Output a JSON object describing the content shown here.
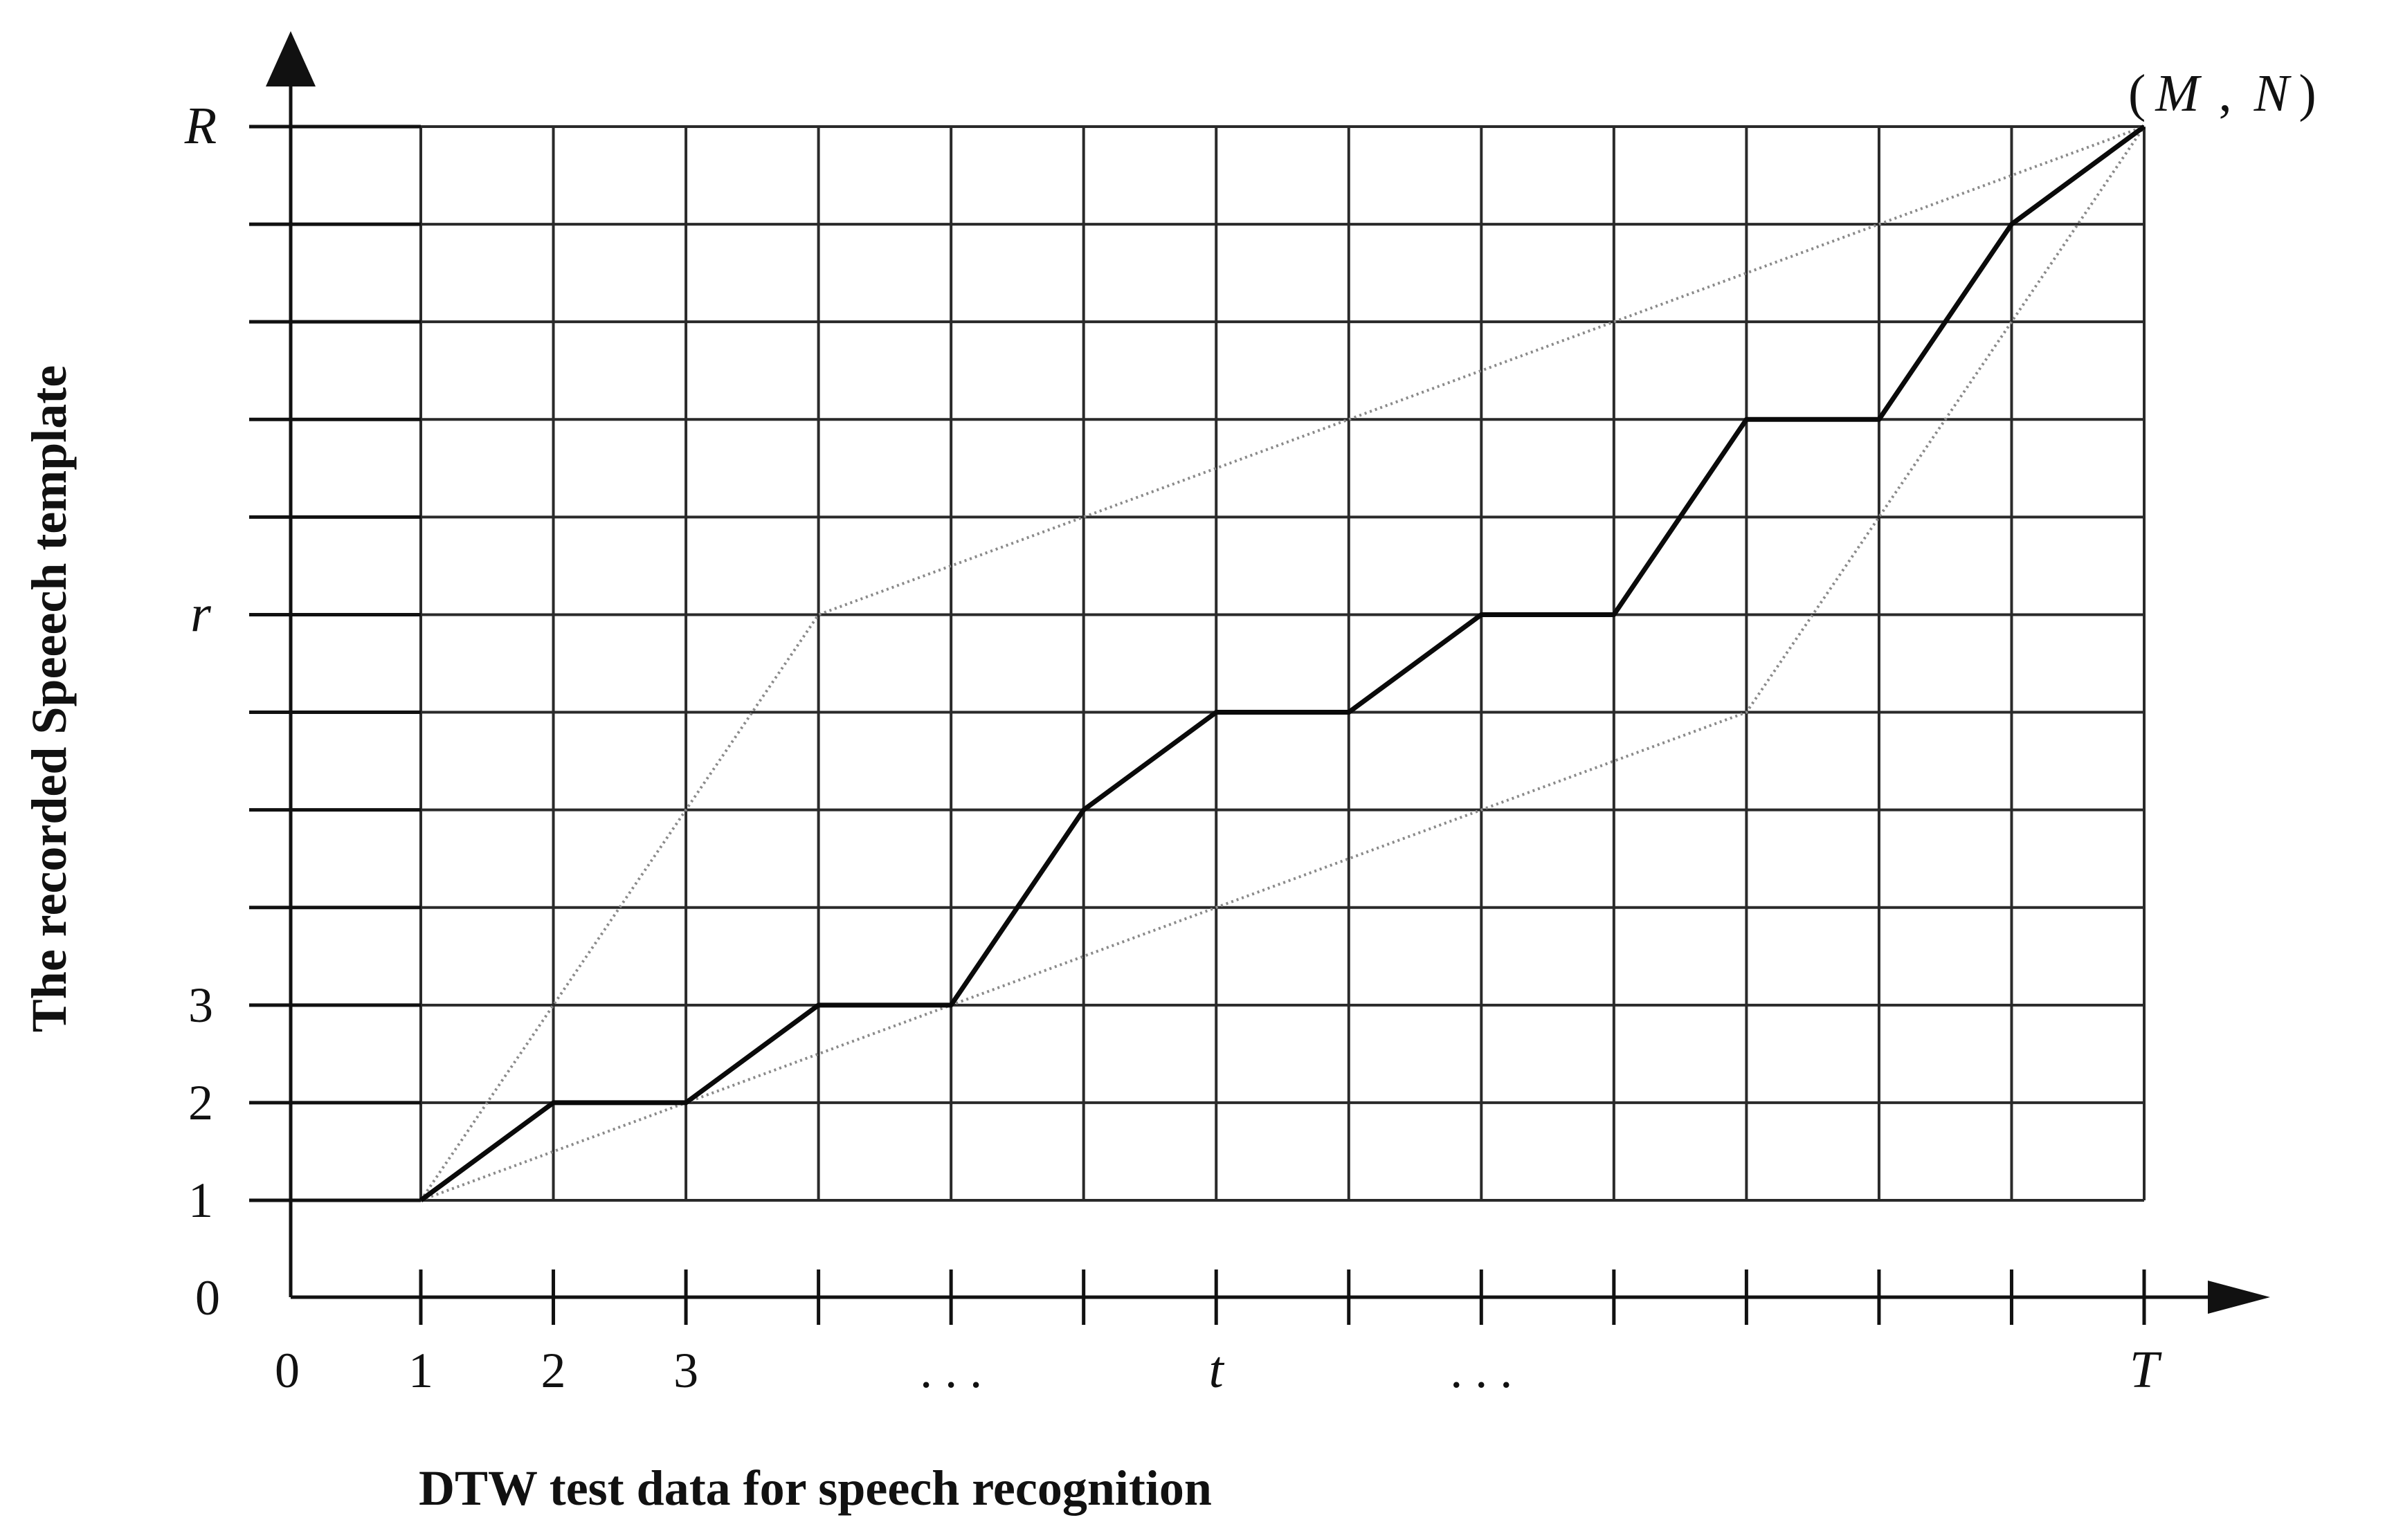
{
  "figure": {
    "x_axis_title": "DTW test data for  speech recognition",
    "y_axis_title": "The recorded Speeech template",
    "corner_label": {
      "open": "(",
      "m": "M",
      "comma": ",",
      "n": "N",
      "close": ")"
    },
    "origin_x_label": "0",
    "origin_y_label": "0",
    "x_tick_labels": [
      "1",
      "2",
      "3",
      "",
      ". . .",
      "",
      "t",
      "",
      ". . .",
      "",
      "",
      "",
      "",
      "T"
    ],
    "y_tick_labels": [
      "1",
      "2",
      "3",
      "",
      "",
      "",
      "r",
      "",
      "",
      "",
      "",
      "R"
    ],
    "columns": 14,
    "rows": 12
  },
  "chart_data": {
    "type": "line",
    "xlabel": "DTW test data for  speech recognition",
    "ylabel": "The recorded Speeech template",
    "xlim": [
      1,
      14
    ],
    "ylim": [
      1,
      12
    ],
    "grid": true,
    "series": [
      {
        "role": "warping-path",
        "style": "bold",
        "points": [
          [
            1,
            1
          ],
          [
            2,
            2
          ],
          [
            3,
            2
          ],
          [
            4,
            3
          ],
          [
            5,
            3
          ],
          [
            6,
            5
          ],
          [
            7,
            6
          ],
          [
            8,
            6
          ],
          [
            9,
            7
          ],
          [
            10,
            7
          ],
          [
            11,
            9
          ],
          [
            12,
            9
          ],
          [
            13,
            11
          ],
          [
            14,
            12
          ]
        ]
      },
      {
        "role": "upper-boundary",
        "style": "dotted",
        "points": [
          [
            1,
            1
          ],
          [
            4,
            7
          ],
          [
            14,
            12
          ]
        ]
      },
      {
        "role": "lower-boundary",
        "style": "dotted",
        "points": [
          [
            1,
            1
          ],
          [
            11,
            6
          ],
          [
            14,
            12
          ]
        ]
      }
    ]
  }
}
